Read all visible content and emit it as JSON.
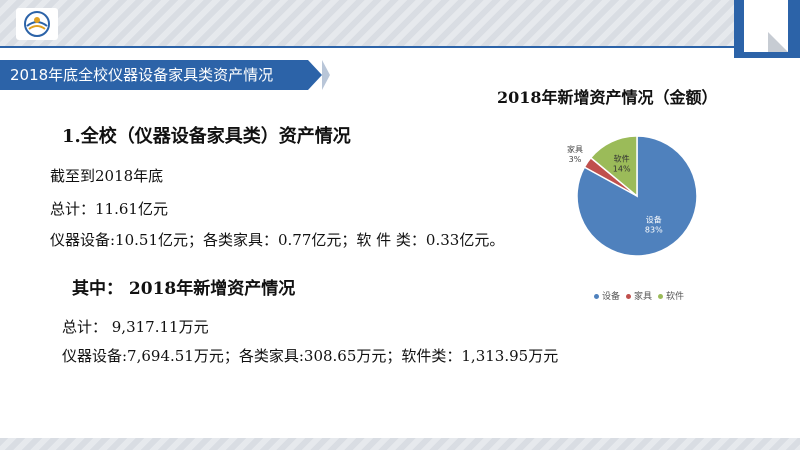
{
  "header": {
    "banner_title": "2018年底全校仪器设备家具类资产情况"
  },
  "content": {
    "heading1": "1.全校（仪器设备家具类）资产情况",
    "line_asof": "截至到2018年底",
    "line_total": "总计：11.61亿元",
    "line_breakdown": "仪器设备:10.51亿元；各类家具：0.77亿元；软 件 类：0.33亿元。",
    "heading2": "其中： 2018年新增资产情况",
    "line_new_total": "总计： 9,317.11万元",
    "line_new_breakdown": "仪器设备:7,694.51万元；各类家具:308.65万元；软件类：1,313.95万元"
  },
  "chart_data": {
    "type": "pie",
    "title": "2018年新增资产情况（金额）",
    "categories": [
      "设备",
      "家具",
      "软件"
    ],
    "values": [
      83,
      3,
      14
    ],
    "labels": [
      "83%",
      "3%",
      "14%"
    ],
    "colors": [
      "#4f81bd",
      "#c0504d",
      "#9bbb59"
    ],
    "legend_position": "bottom"
  }
}
